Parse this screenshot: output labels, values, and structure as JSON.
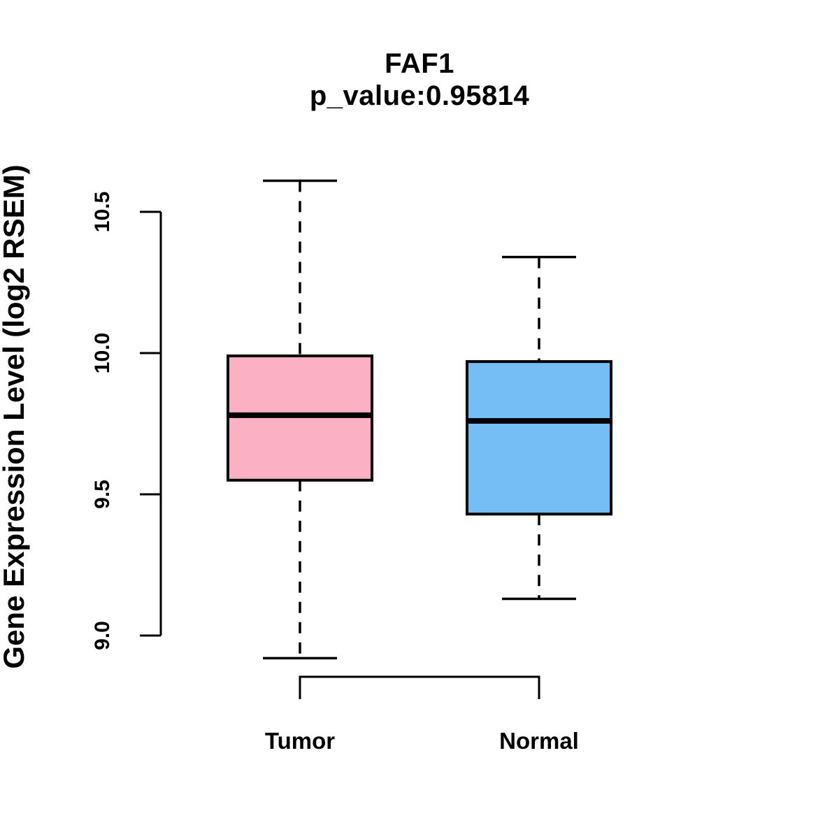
{
  "chart_data": {
    "type": "boxplot",
    "title": "FAF1",
    "subtitle": "p_value:0.95814",
    "gene": "FAF1",
    "p_value": "0.95814",
    "ylabel": "Gene Expression Level (log2 RSEM)",
    "xlabel": "",
    "ylim": [
      8.8,
      10.7
    ],
    "yticks": [
      9.0,
      9.5,
      10.0,
      10.5
    ],
    "ytick_labels": [
      "9.0",
      "9.5",
      "10.0",
      "10.5"
    ],
    "grid": false,
    "legend": "none",
    "whisker_style": "dashed",
    "categories": [
      "Tumor",
      "Normal"
    ],
    "series": [
      {
        "name": "Tumor",
        "box_color": "#FCB0C3",
        "border_color": "#000000",
        "lower_whisker": 8.92,
        "q1": 9.55,
        "median": 9.78,
        "q3": 9.99,
        "upper_whisker": 10.61
      },
      {
        "name": "Normal",
        "box_color": "#74BEF5",
        "border_color": "#000000",
        "lower_whisker": 9.13,
        "q1": 9.43,
        "median": 9.76,
        "q3": 9.97,
        "upper_whisker": 10.34
      }
    ]
  }
}
